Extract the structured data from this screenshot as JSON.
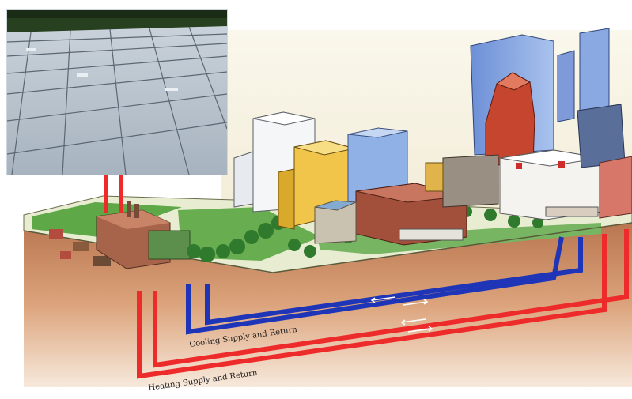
{
  "inset_photo": {
    "subject": "solar-thermal-collector-array"
  },
  "pipes": {
    "cooling_label": "Cooling Supply and Return",
    "heating_label": "Heating Supply and Return"
  },
  "colors": {
    "cooling_pipe": "#1f35b8",
    "heating_pipe": "#ee2b2b",
    "ground_top": "#e7eccf",
    "grass": "#4f9a3f",
    "soil": "#c98a5f"
  }
}
